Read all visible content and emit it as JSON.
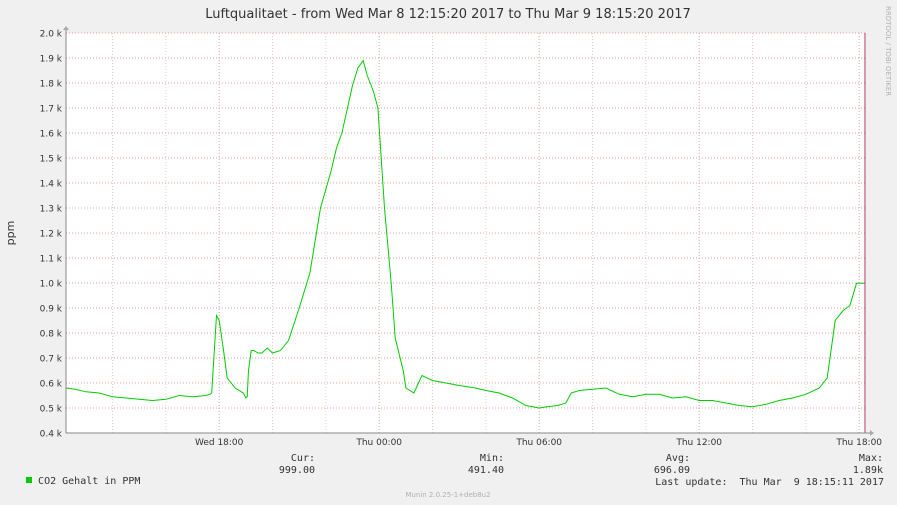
{
  "title": "Luftqualitaet - from Wed Mar  8 12:15:20 2017 to Thu Mar  9 18:15:20 2017",
  "watermark": "RRDTOOL / TOBI OETIKER",
  "footer": "Munin 2.0.25-1+deb8u2",
  "colors": {
    "line": "#00cc00",
    "bg": "#ffffff",
    "frame": "#f0f0f0",
    "grid_major": "#e6a0a0",
    "grid_minor": "#f0c8c8",
    "now_marker": "#b03060"
  },
  "chart_data": {
    "type": "line",
    "title": "Luftqualitaet - from Wed Mar  8 12:15:20 2017 to Thu Mar  9 18:15:20 2017",
    "xlabel": "",
    "ylabel": "ppm",
    "x_unit": "hours since Wed Mar 8 12:00",
    "xlim": [
      0.2556,
      30.2556
    ],
    "ylim": [
      400,
      2000
    ],
    "y_ticks": [
      400,
      500,
      600,
      700,
      800,
      900,
      1000,
      1100,
      1200,
      1300,
      1400,
      1500,
      1600,
      1700,
      1800,
      1900,
      2000
    ],
    "y_tick_labels": [
      "0.4 k",
      "0.5 k",
      "0.6 k",
      "0.7 k",
      "0.8 k",
      "0.9 k",
      "1.0 k",
      "1.1 k",
      "1.2 k",
      "1.3 k",
      "1.4 k",
      "1.5 k",
      "1.6 k",
      "1.7 k",
      "1.8 k",
      "1.9 k",
      "2.0 k"
    ],
    "x_ticks": [
      6,
      12,
      18,
      24,
      30
    ],
    "x_tick_labels": [
      "Wed 18:00",
      "Thu 00:00",
      "Thu 06:00",
      "Thu 12:00",
      "Thu 18:00"
    ],
    "grid": true,
    "series": [
      {
        "name": "CO2 Gehalt in PPM",
        "x": [
          0.26,
          0.6,
          1.0,
          1.5,
          2.0,
          2.5,
          3.0,
          3.5,
          4.0,
          4.5,
          5.0,
          5.5,
          5.65,
          5.72,
          5.9,
          6.0,
          6.15,
          6.3,
          6.6,
          6.9,
          7.0,
          7.05,
          7.1,
          7.2,
          7.3,
          7.45,
          7.6,
          7.8,
          8.0,
          8.3,
          8.6,
          9.0,
          9.4,
          9.8,
          10.2,
          10.4,
          10.6,
          11.0,
          11.2,
          11.4,
          11.55,
          11.7,
          11.8,
          11.95,
          12.2,
          12.45,
          12.6,
          12.9,
          13.0,
          13.3,
          13.6,
          14.0,
          14.5,
          15.0,
          15.6,
          16.0,
          16.5,
          17.0,
          17.5,
          18.0,
          18.3,
          18.7,
          19.0,
          19.2,
          19.5,
          20.0,
          20.5,
          21.0,
          21.5,
          22.0,
          22.5,
          23.0,
          23.5,
          24.0,
          24.5,
          25.0,
          25.5,
          26.0,
          26.5,
          27.0,
          27.5,
          28.0,
          28.5,
          28.8,
          29.1,
          29.4,
          29.65,
          29.9,
          30.0,
          30.1,
          30.2
        ],
        "y": [
          580,
          575,
          565,
          560,
          545,
          540,
          535,
          530,
          535,
          550,
          545,
          550,
          555,
          560,
          870,
          850,
          740,
          620,
          580,
          560,
          540,
          545,
          650,
          730,
          730,
          720,
          720,
          740,
          720,
          730,
          770,
          900,
          1040,
          1300,
          1450,
          1540,
          1600,
          1790,
          1860,
          1890,
          1830,
          1790,
          1760,
          1700,
          1300,
          1000,
          780,
          650,
          580,
          560,
          630,
          610,
          600,
          590,
          580,
          570,
          560,
          540,
          510,
          500,
          505,
          510,
          520,
          560,
          570,
          575,
          580,
          555,
          545,
          555,
          555,
          540,
          545,
          530,
          530,
          520,
          510,
          505,
          515,
          530,
          540,
          555,
          580,
          620,
          850,
          890,
          910,
          999,
          999,
          999,
          999
        ]
      }
    ],
    "legend": {
      "entries": [
        "CO2 Gehalt in PPM"
      ],
      "placement": "bottom"
    },
    "stats": {
      "cur_label": "Cur:",
      "cur": "999.00",
      "min_label": "Min:",
      "min": "491.40",
      "avg_label": "Avg:",
      "avg": "696.09",
      "max_label": "Max:",
      "max": "1.89k"
    },
    "last_update": "Last update:  Thu Mar  9 18:15:11 2017"
  }
}
